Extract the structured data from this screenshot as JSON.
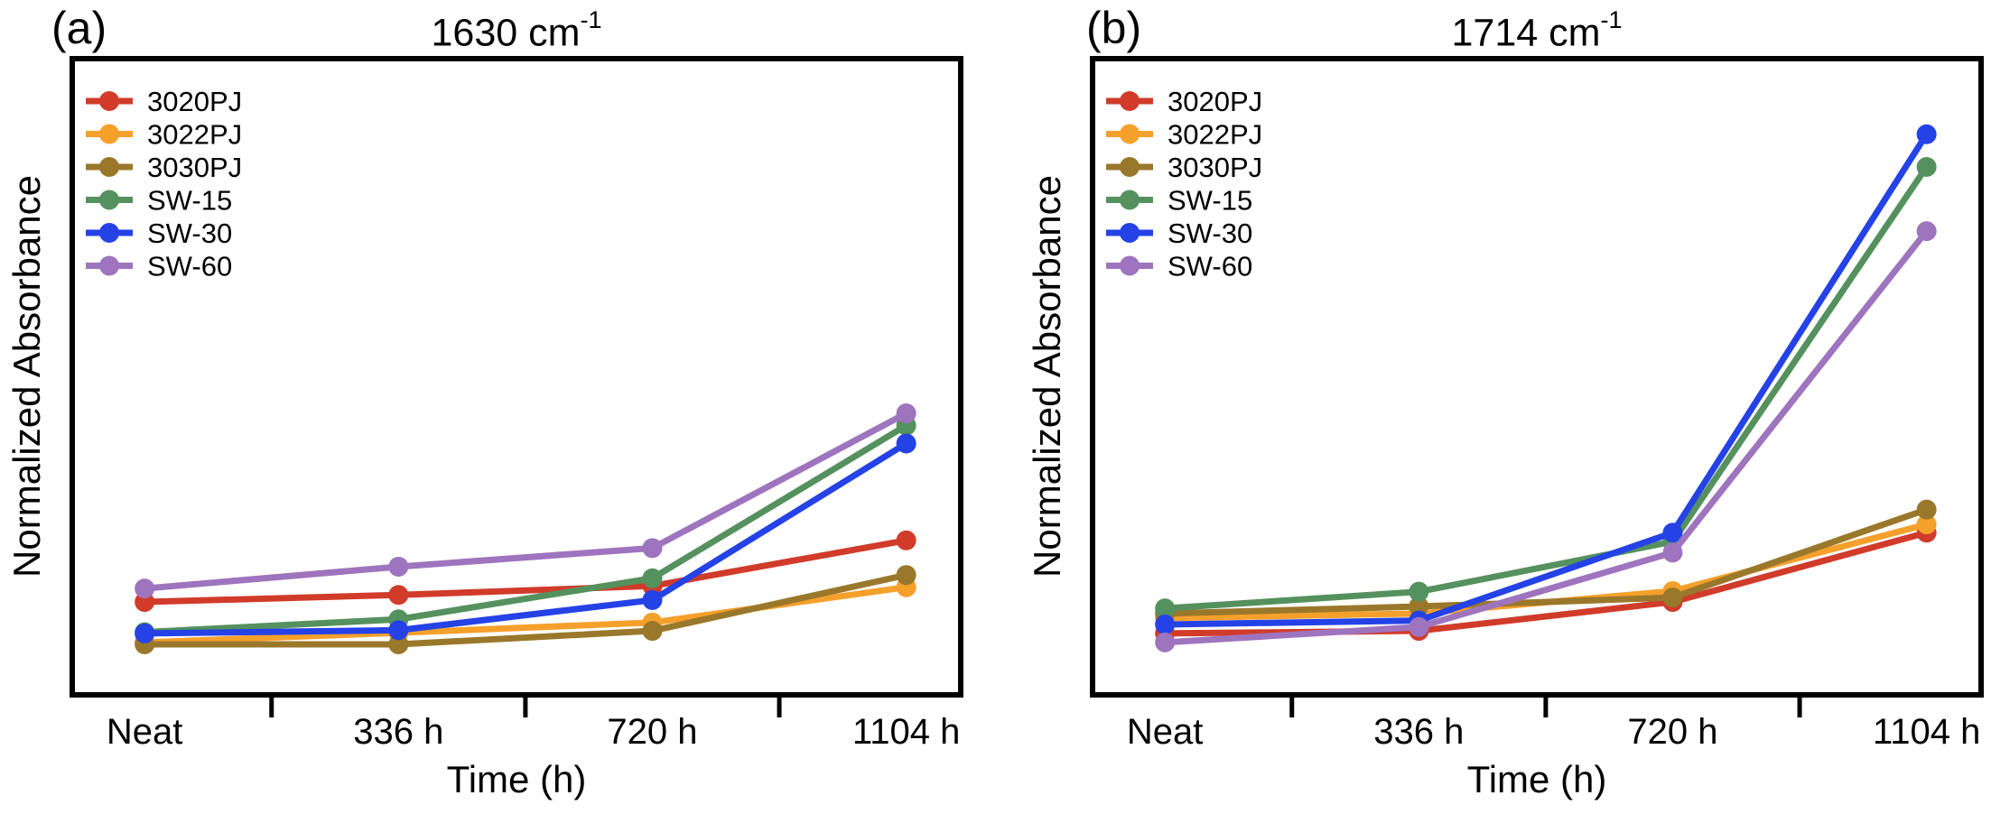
{
  "panels": [
    {
      "letter": "(a)",
      "title_base": "1630 cm",
      "title_exponent": "-1",
      "ylabel": "Normalized Absorbance",
      "xlabel": "Time (h)"
    },
    {
      "letter": "(b)",
      "title_base": "1714 cm",
      "title_exponent": "-1",
      "ylabel": "Normalized Absorbance",
      "xlabel": "Time (h)"
    }
  ],
  "chart_data": [
    {
      "type": "line",
      "title": "1630 cm⁻¹",
      "xlabel": "Time (h)",
      "ylabel": "Normalized Absorbance",
      "categories": [
        "Neat",
        "336 h",
        "720 h",
        "1104 h"
      ],
      "ylim": [
        0,
        1
      ],
      "y_ticks": [],
      "y_axis_note": "no tick marks or numeric labels; arbitrary normalized units estimated from pixel positions",
      "x_tick_style": "ticks drawn midway between category positions",
      "grid": false,
      "legend_position": "upper left",
      "marker": "circle",
      "series": [
        {
          "name": "3020PJ",
          "color": "#d13b2a",
          "values": [
            0.149,
            0.16,
            0.174,
            0.245
          ]
        },
        {
          "name": "3022PJ",
          "color": "#f5a02b",
          "values": [
            0.086,
            0.101,
            0.117,
            0.172
          ]
        },
        {
          "name": "3030PJ",
          "color": "#9a782b",
          "values": [
            0.083,
            0.083,
            0.104,
            0.191
          ]
        },
        {
          "name": "SW-15",
          "color": "#55915e",
          "values": [
            0.102,
            0.122,
            0.186,
            0.424
          ]
        },
        {
          "name": "SW-30",
          "color": "#2442e6",
          "values": [
            0.1,
            0.105,
            0.152,
            0.396
          ]
        },
        {
          "name": "SW-60",
          "color": "#9e74be",
          "values": [
            0.17,
            0.204,
            0.233,
            0.443
          ]
        }
      ]
    },
    {
      "type": "line",
      "title": "1714 cm⁻¹",
      "xlabel": "Time (h)",
      "ylabel": "Normalized Absorbance",
      "categories": [
        "Neat",
        "336 h",
        "720 h",
        "1104 h"
      ],
      "ylim": [
        0,
        1
      ],
      "y_ticks": [],
      "y_axis_note": "no tick marks or numeric labels; arbitrary normalized units estimated from pixel positions",
      "x_tick_style": "ticks drawn midway between category positions",
      "grid": false,
      "legend_position": "upper left",
      "marker": "circle",
      "series": [
        {
          "name": "3020PJ",
          "color": "#d13b2a",
          "values": [
            0.1,
            0.104,
            0.149,
            0.257
          ]
        },
        {
          "name": "3022PJ",
          "color": "#f5a02b",
          "values": [
            0.124,
            0.131,
            0.166,
            0.27
          ]
        },
        {
          "name": "3030PJ",
          "color": "#9a782b",
          "values": [
            0.131,
            0.142,
            0.156,
            0.293
          ]
        },
        {
          "name": "SW-15",
          "color": "#55915e",
          "values": [
            0.139,
            0.165,
            0.243,
            0.827
          ]
        },
        {
          "name": "SW-30",
          "color": "#2442e6",
          "values": [
            0.114,
            0.12,
            0.257,
            0.878
          ]
        },
        {
          "name": "SW-60",
          "color": "#9e74be",
          "values": [
            0.086,
            0.11,
            0.226,
            0.727
          ]
        }
      ]
    }
  ]
}
